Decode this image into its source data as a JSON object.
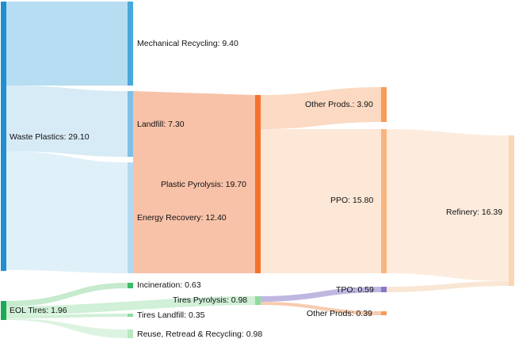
{
  "nodes": {
    "waste_plastics": "Waste Plastics: 29.10",
    "mechanical_recycling": "Mechanical Recycling: 9.40",
    "landfill": "Landfill: 7.30",
    "energy_recovery": "Energy Recovery: 12.40",
    "plastic_pyrolysis": "Plastic Pyrolysis: 19.70",
    "other_prods_plastic": "Other Prods.: 3.90",
    "ppo": "PPO: 15.80",
    "refinery": "Refinery: 16.39",
    "eol_tires": "EOL Tires: 1.96",
    "incineration": "Incineration: 0.63",
    "tires_pyrolysis": "Tires Pyrolysis: 0.98",
    "tires_landfill": "Tires Landfill: 0.35",
    "reuse_retread": "Reuse, Retread & Recycling: 0.98",
    "tpo": "TPO: 0.59",
    "other_prods_tires": "Other Prods: 0.39"
  },
  "colors": {
    "plastics": "#1f8fcf",
    "plastics_light": "#9fd0ea",
    "pyrolysis": "#f4722b",
    "pyrolysis_light": "#f7a77a",
    "refinery": "#fad6b4",
    "tires": "#1aaa55",
    "tires_light": "#8fdb9f",
    "tpo": "#8a78c6"
  }
}
